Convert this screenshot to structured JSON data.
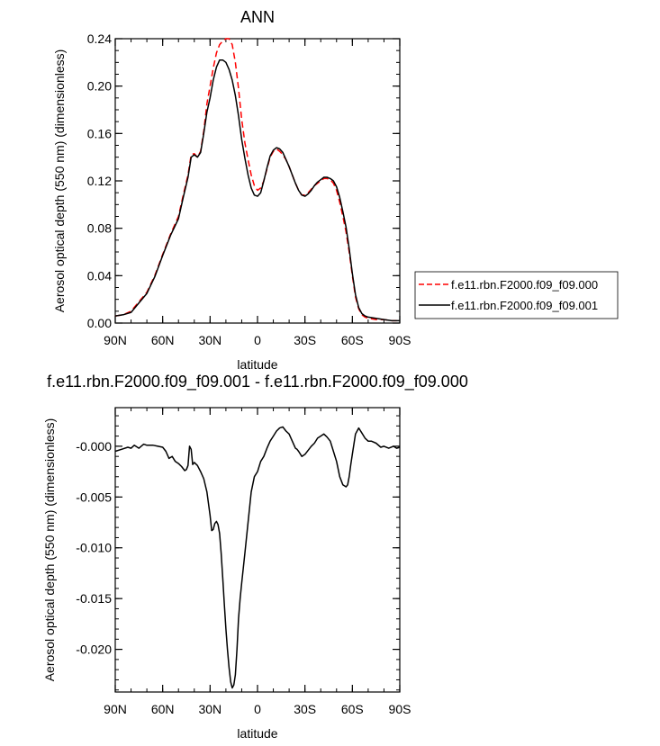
{
  "chart_data": [
    {
      "type": "line",
      "title": "ANN",
      "xlabel": "latitude",
      "ylabel": "Aerosol optical depth (550 nm) (dimensionless)",
      "xlim": [
        90,
        -90
      ],
      "ylim": [
        0,
        0.24
      ],
      "xticks": [
        90,
        60,
        30,
        0,
        -30,
        -60,
        -90
      ],
      "xtick_labels": [
        "90N",
        "60N",
        "30N",
        "0",
        "30S",
        "60S",
        "90S"
      ],
      "yticks": [
        0,
        0.04,
        0.08,
        0.12,
        0.16,
        0.2,
        0.24
      ],
      "ytick_labels": [
        "0.00",
        "0.04",
        "0.08",
        "0.12",
        "0.16",
        "0.20",
        "0.24"
      ],
      "legend_position": "right",
      "series": [
        {
          "name": "f.e11.rbn.F2000.f09_f09.000",
          "color": "#ff0000",
          "dash": "dashed",
          "x": [
            90,
            85,
            80,
            75,
            70,
            65,
            60,
            55,
            50,
            47,
            44,
            42,
            40,
            38,
            36,
            34,
            32,
            30,
            28,
            26,
            24,
            22,
            20,
            18,
            16,
            14,
            12,
            10,
            8,
            6,
            4,
            2,
            0,
            -2,
            -4,
            -6,
            -8,
            -10,
            -12,
            -14,
            -16,
            -18,
            -20,
            -22,
            -24,
            -26,
            -28,
            -30,
            -32,
            -34,
            -36,
            -38,
            -40,
            -42,
            -44,
            -46,
            -48,
            -50,
            -52,
            -54,
            -56,
            -58,
            -60,
            -62,
            -64,
            -66,
            -68,
            -70,
            -75,
            -80,
            -85,
            -90
          ],
          "y": [
            0.006,
            0.007,
            0.01,
            0.018,
            0.026,
            0.04,
            0.058,
            0.075,
            0.09,
            0.108,
            0.125,
            0.142,
            0.143,
            0.14,
            0.145,
            0.162,
            0.185,
            0.2,
            0.215,
            0.228,
            0.235,
            0.238,
            0.24,
            0.24,
            0.235,
            0.22,
            0.198,
            0.172,
            0.152,
            0.138,
            0.125,
            0.116,
            0.112,
            0.114,
            0.12,
            0.13,
            0.14,
            0.145,
            0.147,
            0.145,
            0.142,
            0.138,
            0.132,
            0.125,
            0.118,
            0.112,
            0.108,
            0.108,
            0.11,
            0.113,
            0.116,
            0.118,
            0.12,
            0.122,
            0.122,
            0.121,
            0.118,
            0.112,
            0.102,
            0.09,
            0.077,
            0.06,
            0.04,
            0.022,
            0.012,
            0.007,
            0.005,
            0.004,
            0.003,
            0.003,
            0.002,
            0.002
          ]
        },
        {
          "name": "f.e11.rbn.F2000.f09_f09.001",
          "color": "#000000",
          "dash": "solid",
          "x": [
            90,
            85,
            80,
            75,
            70,
            65,
            60,
            55,
            50,
            47,
            44,
            42,
            40,
            38,
            36,
            34,
            32,
            30,
            28,
            26,
            24,
            22,
            20,
            18,
            16,
            14,
            12,
            10,
            8,
            6,
            4,
            2,
            0,
            -2,
            -4,
            -6,
            -8,
            -10,
            -12,
            -14,
            -16,
            -18,
            -20,
            -22,
            -24,
            -26,
            -28,
            -30,
            -32,
            -34,
            -36,
            -38,
            -40,
            -42,
            -44,
            -46,
            -48,
            -50,
            -52,
            -54,
            -56,
            -58,
            -60,
            -62,
            -64,
            -66,
            -68,
            -70,
            -75,
            -80,
            -85,
            -90
          ],
          "y": [
            0.006,
            0.007,
            0.009,
            0.017,
            0.025,
            0.039,
            0.057,
            0.074,
            0.088,
            0.106,
            0.123,
            0.14,
            0.142,
            0.14,
            0.144,
            0.16,
            0.178,
            0.19,
            0.205,
            0.216,
            0.222,
            0.222,
            0.22,
            0.214,
            0.205,
            0.192,
            0.175,
            0.155,
            0.139,
            0.125,
            0.114,
            0.108,
            0.107,
            0.11,
            0.12,
            0.131,
            0.141,
            0.146,
            0.148,
            0.147,
            0.144,
            0.138,
            0.132,
            0.125,
            0.118,
            0.112,
            0.108,
            0.107,
            0.109,
            0.112,
            0.116,
            0.119,
            0.121,
            0.123,
            0.123,
            0.122,
            0.12,
            0.115,
            0.106,
            0.094,
            0.081,
            0.063,
            0.042,
            0.024,
            0.013,
            0.008,
            0.006,
            0.005,
            0.004,
            0.003,
            0.002,
            0.002
          ]
        }
      ]
    },
    {
      "type": "line",
      "title": "f.e11.rbn.F2000.f09_f09.001 - f.e11.rbn.F2000.f09_f09.000",
      "xlabel": "latitude",
      "ylabel": "Aerosol optical depth (550 nm) (dimensionless)",
      "xlim": [
        90,
        -90
      ],
      "ylim": [
        -0.0242,
        0.0038
      ],
      "xticks": [
        90,
        60,
        30,
        0,
        -30,
        -60,
        -90
      ],
      "xtick_labels": [
        "90N",
        "60N",
        "30N",
        "0",
        "30S",
        "60S",
        "90S"
      ],
      "yticks": [
        0,
        -0.005,
        -0.01,
        -0.015,
        -0.02
      ],
      "ytick_labels": [
        "-0.000",
        "-0.005",
        "-0.010",
        "-0.015",
        "-0.020"
      ],
      "series": [
        {
          "color": "#000000",
          "dash": "solid",
          "x": [
            90,
            86,
            82,
            80,
            78,
            75,
            72,
            70,
            66,
            63,
            60,
            58,
            56,
            54,
            52,
            50,
            48,
            46,
            45,
            44,
            43,
            42,
            41,
            40,
            38,
            36,
            34,
            32,
            30,
            29,
            28,
            27,
            26,
            25,
            24,
            23,
            22,
            21,
            20,
            19,
            18,
            17,
            16,
            15,
            14,
            13,
            12,
            11,
            10,
            9,
            8,
            6,
            4,
            2,
            0,
            -2,
            -4,
            -6,
            -8,
            -10,
            -12,
            -14,
            -16,
            -18,
            -20,
            -22,
            -24,
            -25,
            -26,
            -28,
            -30,
            -32,
            -34,
            -36,
            -38,
            -40,
            -42,
            -44,
            -46,
            -48,
            -50,
            -52,
            -54,
            -56,
            -57,
            -58,
            -59,
            -60,
            -62,
            -64,
            -66,
            -68,
            -70,
            -72,
            -75,
            -78,
            -80,
            -83,
            -86,
            -88,
            -90
          ],
          "y": [
            -0.0005,
            -0.0003,
            -0.0001,
            -0.0002,
            0.0001,
            -0.0002,
            0.0002,
            0.0001,
            0.0001,
            0.0,
            -0.0001,
            -0.0005,
            -0.0012,
            -0.001,
            -0.0015,
            -0.0017,
            -0.002,
            -0.0024,
            -0.0023,
            -0.0019,
            0.0,
            -0.0003,
            -0.0018,
            -0.0016,
            -0.0019,
            -0.0025,
            -0.0032,
            -0.0045,
            -0.0068,
            -0.0083,
            -0.0082,
            -0.0076,
            -0.0074,
            -0.0077,
            -0.0086,
            -0.0105,
            -0.013,
            -0.0155,
            -0.018,
            -0.02,
            -0.0218,
            -0.0232,
            -0.0238,
            -0.0235,
            -0.0225,
            -0.02,
            -0.017,
            -0.015,
            -0.0135,
            -0.012,
            -0.0105,
            -0.0075,
            -0.0045,
            -0.003,
            -0.0025,
            -0.0015,
            -0.001,
            -0.0002,
            0.0005,
            0.001,
            0.0015,
            0.0018,
            0.0019,
            0.0015,
            0.0012,
            0.0005,
            -0.0002,
            -0.0003,
            -0.0005,
            -0.001,
            -0.0008,
            -0.0004,
            0.0,
            0.0003,
            0.0008,
            0.001,
            0.0012,
            0.0009,
            0.0005,
            -0.0005,
            -0.0015,
            -0.003,
            -0.0038,
            -0.004,
            -0.0038,
            -0.003,
            -0.0018,
            -0.0008,
            0.0012,
            0.0018,
            0.0013,
            0.0008,
            0.0005,
            0.0005,
            0.0003,
            -0.0001,
            0.0,
            -0.0002,
            0.0,
            -0.0002,
            -0.0001
          ]
        }
      ]
    }
  ]
}
